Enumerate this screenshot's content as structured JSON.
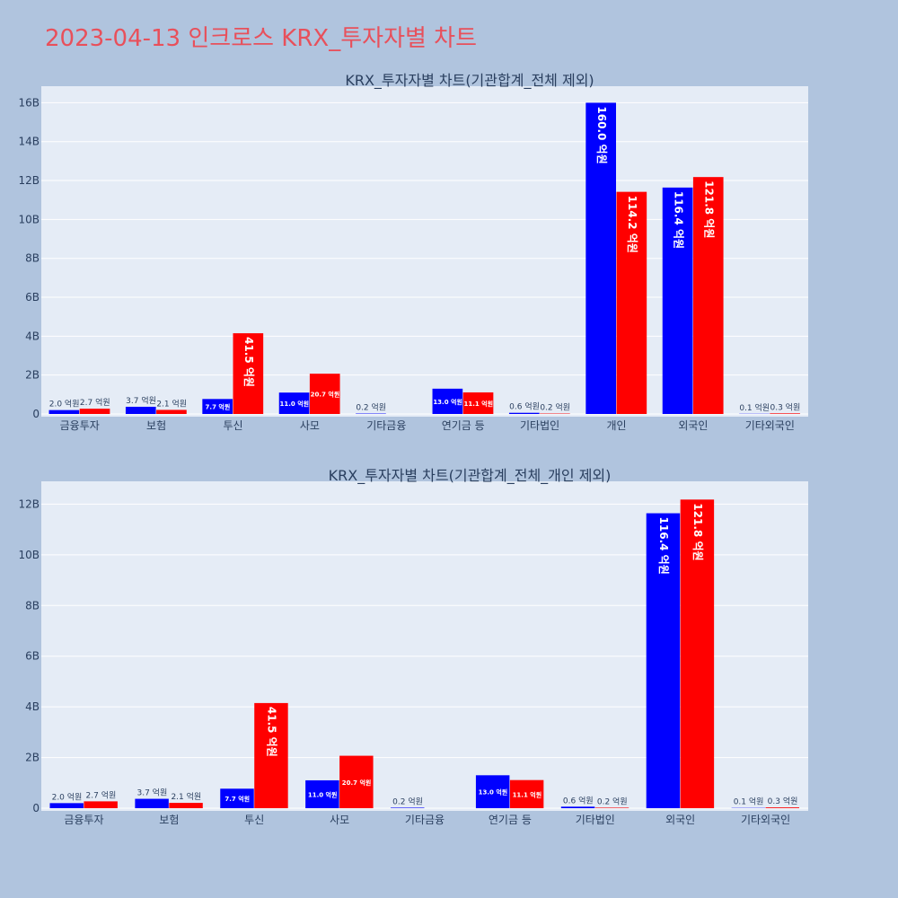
{
  "title": "2023-04-13 인크로스 KRX_투자자별 차트",
  "colors": {
    "buy": "#0000ff",
    "sell": "#ff0000",
    "plot_bg": "#e5ecf6",
    "page_bg": "#b0c4de",
    "title": "#e8505b"
  },
  "chart_data": [
    {
      "type": "bar",
      "title": "KRX_투자자별 차트(기관합계_전체 제외)",
      "categories": [
        "금융투자",
        "보험",
        "투신",
        "사모",
        "기타금융",
        "연기금 등",
        "기타법인",
        "개인",
        "외국인",
        "기타외국인"
      ],
      "series": [
        {
          "color": "#0000ff",
          "values": [
            0.2,
            0.37,
            0.77,
            1.1,
            0.02,
            1.3,
            0.06,
            16.0,
            11.64,
            0.01
          ],
          "labels": [
            "2.0 억원",
            "3.7 억원",
            "7.7 억원",
            "11.0 억원",
            "0.2 억원",
            "13.0 억원",
            "0.6 억원",
            "160.0 억원",
            "116.4 억원",
            "0.1 억원"
          ]
        },
        {
          "color": "#ff0000",
          "values": [
            0.27,
            0.21,
            4.15,
            2.07,
            0,
            1.11,
            0.02,
            11.42,
            12.18,
            0.03
          ],
          "labels": [
            "2.7 억원",
            "2.1 억원",
            "41.5 억원",
            "20.7 억원",
            "",
            "11.1 억원",
            "0.2 억원",
            "114.2 억원",
            "121.8 억원",
            "0.3 억원"
          ]
        }
      ],
      "y_unit": "B",
      "yticks": [
        0,
        2,
        4,
        6,
        8,
        10,
        12,
        14,
        16
      ],
      "ytick_labels": [
        "0",
        "2B",
        "4B",
        "6B",
        "8B",
        "10B",
        "12B",
        "14B",
        "16B"
      ],
      "ylim": [
        0,
        16.85
      ],
      "grid": true,
      "legend": "none"
    },
    {
      "type": "bar",
      "title": "KRX_투자자별 차트(기관합계_전체_개인 제외)",
      "categories": [
        "금융투자",
        "보험",
        "투신",
        "사모",
        "기타금융",
        "연기금 등",
        "기타법인",
        "외국인",
        "기타외국인"
      ],
      "series": [
        {
          "color": "#0000ff",
          "values": [
            0.2,
            0.37,
            0.77,
            1.1,
            0.02,
            1.3,
            0.06,
            11.64,
            0.01
          ],
          "labels": [
            "2.0 억원",
            "3.7 억원",
            "7.7 억원",
            "11.0 억원",
            "0.2 억원",
            "13.0 억원",
            "0.6 억원",
            "116.4 억원",
            "0.1 억원"
          ]
        },
        {
          "color": "#ff0000",
          "values": [
            0.27,
            0.21,
            4.15,
            2.07,
            0,
            1.11,
            0.02,
            12.18,
            0.03
          ],
          "labels": [
            "2.7 억원",
            "2.1 억원",
            "41.5 억원",
            "20.7 억원",
            "",
            "11.1 억원",
            "0.2 억원",
            "121.8 억원",
            "0.3 억원"
          ]
        }
      ],
      "y_unit": "B",
      "yticks": [
        0,
        2,
        4,
        6,
        8,
        10,
        12
      ],
      "ytick_labels": [
        "0",
        "2B",
        "4B",
        "6B",
        "8B",
        "10B",
        "12B"
      ],
      "ylim": [
        0,
        12.9
      ],
      "grid": true,
      "legend": "none"
    }
  ]
}
